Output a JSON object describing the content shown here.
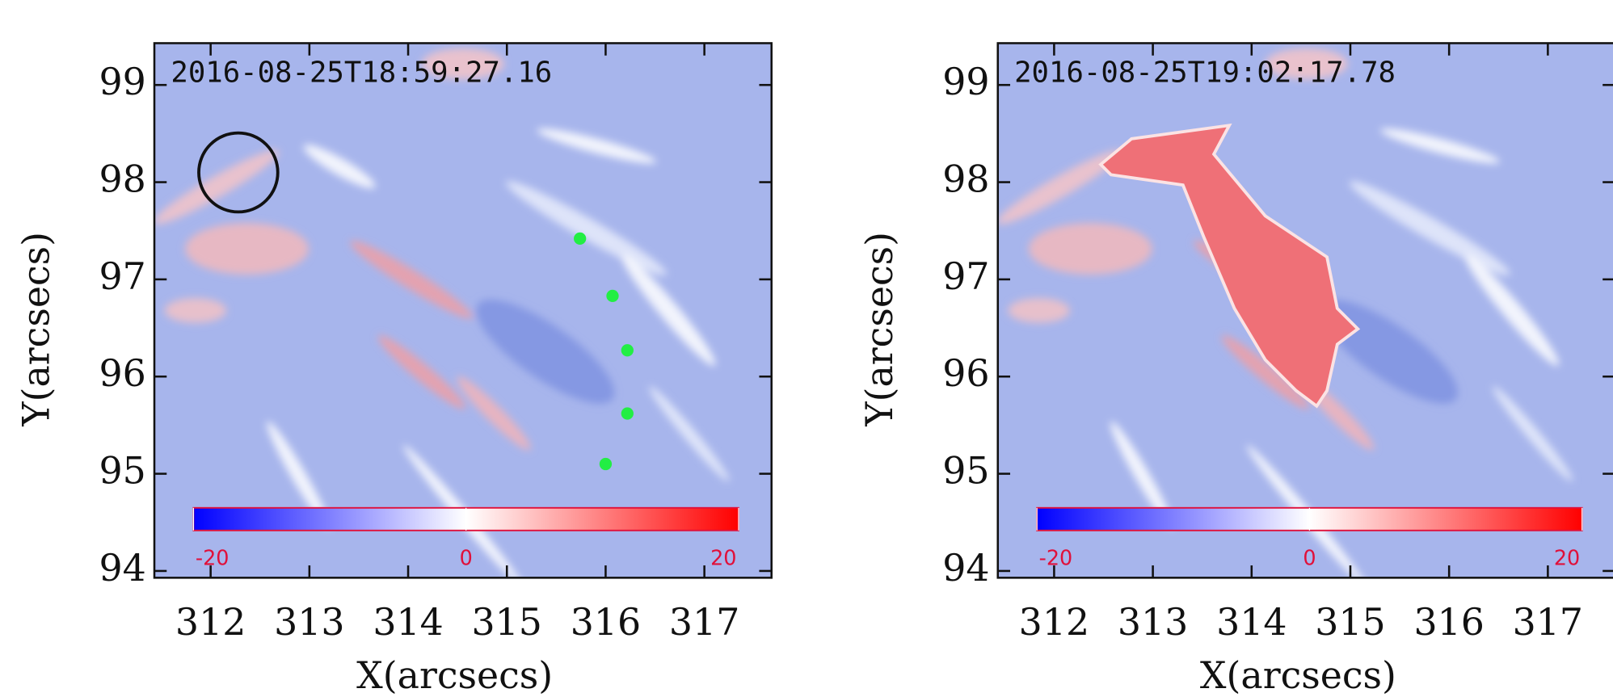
{
  "chart_data": [
    {
      "type": "image",
      "title": "2016-08-25T18:59:27.16",
      "xlabel": "X(arcsecs)",
      "ylabel": "Y(arcsecs)",
      "xlim": [
        311.43,
        317.68
      ],
      "ylim": [
        93.93,
        99.43
      ],
      "xticks": [
        312,
        313,
        314,
        315,
        316,
        317
      ],
      "yticks": [
        94,
        95,
        96,
        97,
        98,
        99
      ],
      "colorbar": {
        "lim": [
          -20,
          20
        ],
        "ticks": [
          -20,
          0,
          20
        ]
      },
      "points": {
        "x": [
          315.74,
          316.07,
          316.22,
          316.22,
          316.0
        ],
        "y": [
          97.42,
          96.83,
          96.27,
          95.62,
          95.1
        ],
        "color": "#22ee44"
      },
      "circle": {
        "x": 312.28,
        "y": 98.1,
        "r": 0.4
      }
    },
    {
      "type": "image",
      "title": "2016-08-25T19:02:17.78",
      "xlabel": "X(arcsecs)",
      "ylabel": "Y(arcsecs)",
      "xlim": [
        311.43,
        317.68
      ],
      "ylim": [
        93.93,
        99.43
      ],
      "xticks": [
        312,
        313,
        314,
        315,
        316,
        317
      ],
      "yticks": [
        94,
        95,
        96,
        97,
        98,
        99
      ],
      "colorbar": {
        "lim": [
          -20,
          20
        ],
        "ticks": [
          -20,
          0,
          20
        ]
      }
    }
  ]
}
